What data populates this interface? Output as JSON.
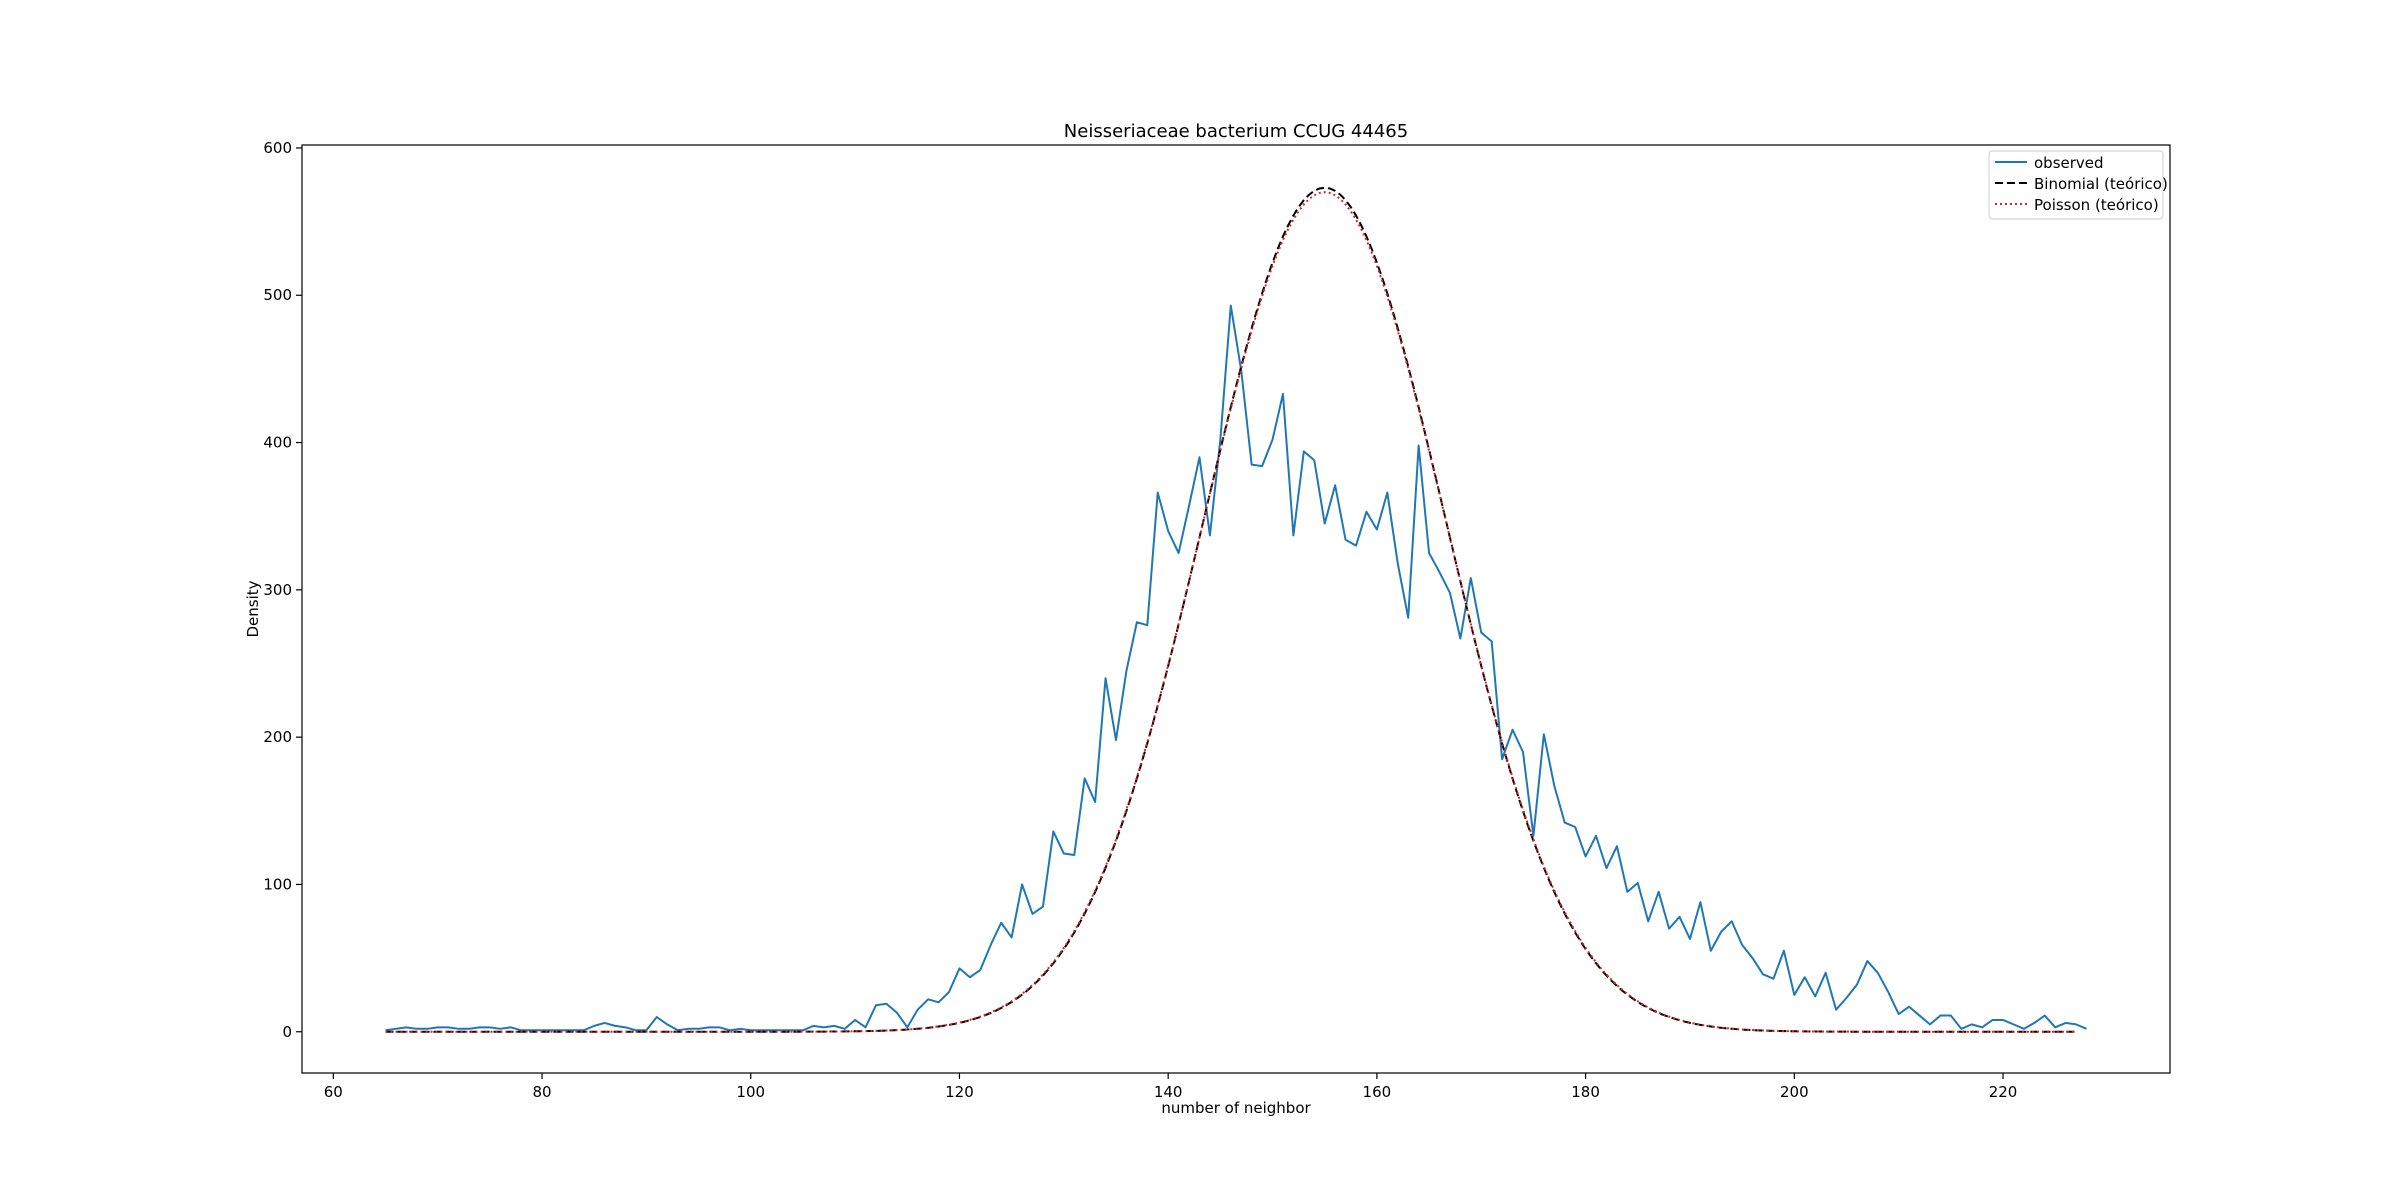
{
  "chart_data": {
    "type": "line",
    "title": "Neisseriaceae bacterium CCUG 44465",
    "xlabel": "number of neighbor",
    "ylabel": "Density",
    "xlim": [
      57,
      236
    ],
    "ylim": [
      -28,
      602
    ],
    "xticks": [
      60,
      80,
      100,
      120,
      140,
      160,
      180,
      200,
      220
    ],
    "yticks": [
      0,
      100,
      200,
      300,
      400,
      500,
      600
    ],
    "grid": false,
    "legend_position": "top-right",
    "series": [
      {
        "name": "observed",
        "style": "solid",
        "color": "#1f77b4",
        "x": [
          65,
          66,
          67,
          68,
          69,
          70,
          71,
          72,
          73,
          74,
          75,
          76,
          77,
          78,
          79,
          80,
          81,
          82,
          83,
          84,
          85,
          86,
          87,
          88,
          89,
          90,
          91,
          92,
          93,
          94,
          95,
          96,
          97,
          98,
          99,
          100,
          101,
          102,
          103,
          104,
          105,
          106,
          107,
          108,
          109,
          110,
          111,
          112,
          113,
          114,
          115,
          116,
          117,
          118,
          119,
          120,
          121,
          122,
          123,
          124,
          125,
          126,
          127,
          128,
          129,
          130,
          131,
          132,
          133,
          134,
          135,
          136,
          137,
          138,
          139,
          140,
          141,
          142,
          143,
          144,
          145,
          146,
          147,
          148,
          149,
          150,
          151,
          152,
          153,
          154,
          155,
          156,
          157,
          158,
          159,
          160,
          161,
          162,
          163,
          164,
          165,
          166,
          167,
          168,
          169,
          170,
          171,
          172,
          173,
          174,
          175,
          176,
          177,
          178,
          179,
          180,
          181,
          182,
          183,
          184,
          185,
          186,
          187,
          188,
          189,
          190,
          191,
          192,
          193,
          194,
          195,
          196,
          197,
          198,
          199,
          200,
          201,
          202,
          203,
          204,
          205,
          206,
          207,
          208,
          209,
          210,
          211,
          212,
          213,
          214,
          215,
          216,
          217,
          218,
          219,
          220,
          221,
          222,
          223,
          224,
          225,
          226,
          227,
          228
        ],
        "y": [
          1,
          2,
          3,
          2,
          2,
          3,
          3,
          2,
          2,
          3,
          3,
          2,
          3,
          1,
          1,
          1,
          1,
          1,
          1,
          1,
          4,
          6,
          4,
          3,
          1,
          1,
          10,
          5,
          1,
          2,
          2,
          3,
          3,
          1,
          2,
          1,
          1,
          1,
          1,
          1,
          1,
          4,
          3,
          4,
          2,
          8,
          3,
          18,
          19,
          13,
          3,
          15,
          22,
          20,
          27,
          43,
          37,
          42,
          59,
          74,
          64,
          100,
          80,
          85,
          136,
          121,
          120,
          172,
          156,
          240,
          198,
          245,
          278,
          276,
          366,
          340,
          325,
          357,
          390,
          337,
          402,
          493,
          449,
          385,
          384,
          402,
          433,
          337,
          394,
          388,
          345,
          371,
          334,
          330,
          353,
          341,
          366,
          318,
          281,
          398,
          325,
          312,
          298,
          267,
          308,
          271,
          265,
          185,
          205,
          190,
          133,
          202,
          167,
          142,
          139,
          119,
          133,
          111,
          126,
          95,
          101,
          75,
          95,
          70,
          78,
          63,
          88,
          55,
          68,
          75,
          59,
          50,
          39,
          36,
          55,
          25,
          37,
          24,
          40,
          15,
          23,
          32,
          48,
          40,
          27,
          12,
          17,
          11,
          5,
          11,
          11,
          2,
          5,
          3,
          8,
          8,
          5,
          2,
          6,
          11,
          3,
          6,
          5,
          2
        ]
      },
      {
        "name": "Binomial (teórico)",
        "style": "dashed",
        "color": "#000000",
        "mean": 155,
        "sd": 11.6,
        "peak": 573,
        "x_range": [
          65,
          227
        ]
      },
      {
        "name": "Poisson (teórico)",
        "style": "dotted",
        "color": "#d62728",
        "mean": 155,
        "sd": 11.65,
        "peak": 570,
        "x_range": [
          65,
          227
        ]
      }
    ]
  }
}
